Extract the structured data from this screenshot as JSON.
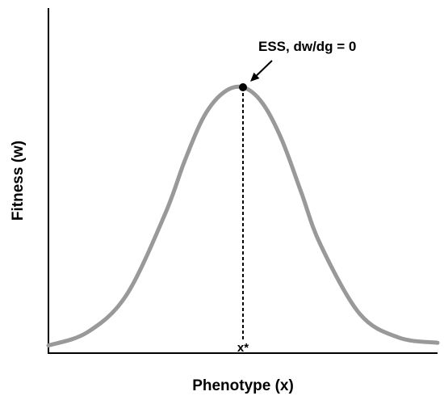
{
  "chart_data": {
    "type": "line",
    "title": "",
    "xlabel": "Phenotype (x)",
    "ylabel": "Fitness (w)",
    "series": [
      {
        "x": [
          0,
          0.1,
          0.2,
          0.3,
          0.35,
          0.4,
          0.45,
          0.5,
          0.55,
          0.6,
          0.65,
          0.7,
          0.8,
          0.9,
          1.0
        ],
        "y": [
          0.02,
          0.07,
          0.21,
          0.52,
          0.72,
          0.89,
          0.98,
          1.0,
          0.94,
          0.8,
          0.6,
          0.4,
          0.14,
          0.05,
          0.03
        ]
      }
    ],
    "xlim": [
      0,
      1
    ],
    "ylim": [
      0,
      1
    ],
    "grid": false,
    "color": "#999999",
    "peak": {
      "x": 0.5,
      "y": 1.0
    },
    "annotations": {
      "ess": "ESS, dw/dg = 0",
      "xstar": "x*"
    }
  }
}
